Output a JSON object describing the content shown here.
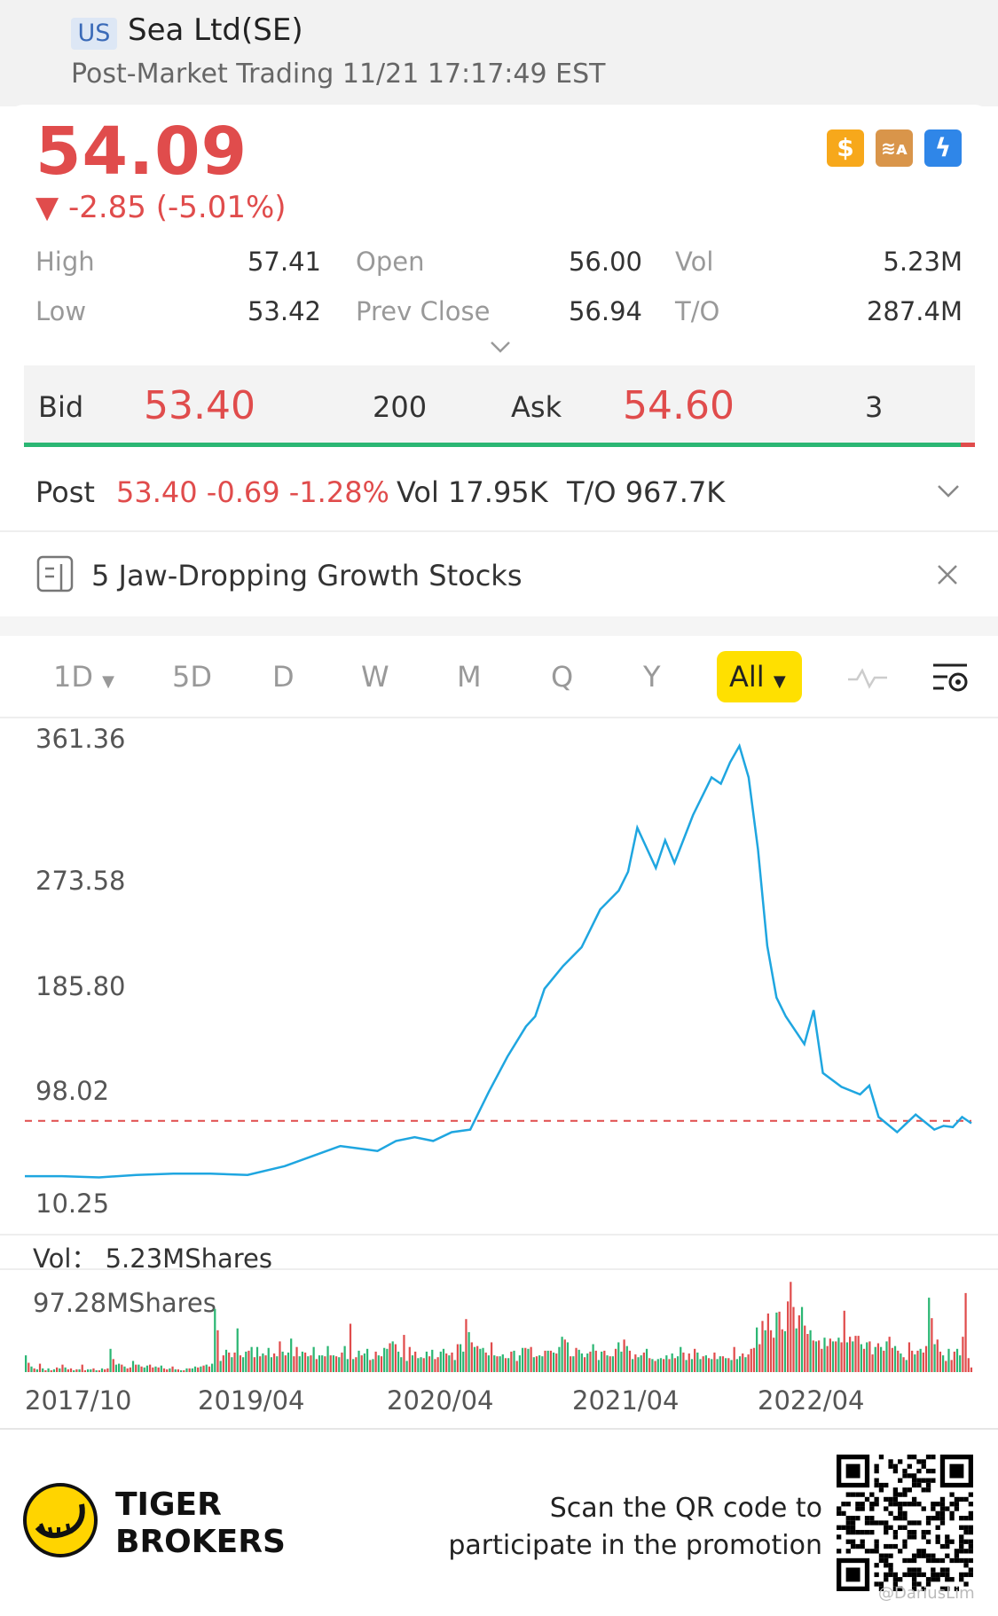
{
  "header": {
    "market": "US",
    "name": "Sea Ltd(SE)",
    "status": "Post-Market Trading 11/21 17:17:49 EST"
  },
  "quote": {
    "price": "54.09",
    "change": "-2.85 (-5.01%)",
    "down_color": "#e04c4c",
    "up_color": "#2bb673"
  },
  "icons": [
    "dollar-icon",
    "stack-a-icon",
    "lightning-icon"
  ],
  "stats": {
    "high_label": "High",
    "high": "57.41",
    "low_label": "Low",
    "low": "53.42",
    "open_label": "Open",
    "open": "56.00",
    "prev_close_label": "Prev Close",
    "prev_close": "56.94",
    "vol_label": "Vol",
    "vol": "5.23M",
    "to_label": "T/O",
    "to": "287.4M"
  },
  "bidask": {
    "bid_label": "Bid",
    "bid": "53.40",
    "bid_size": "200",
    "ask_label": "Ask",
    "ask": "54.60",
    "ask_size": "3"
  },
  "post": {
    "label": "Post",
    "quote": "53.40 -0.69 -1.28%",
    "vol": "Vol 17.95K",
    "to": "T/O 967.7K"
  },
  "news": {
    "title": "5 Jaw-Dropping Growth Stocks"
  },
  "tabs": {
    "d1": "1D",
    "d5": "5D",
    "day": "D",
    "week": "W",
    "month": "M",
    "quarter": "Q",
    "year": "Y",
    "all": "All",
    "active": "All",
    "active_color": "#ffe000"
  },
  "chart_data": [
    {
      "type": "line",
      "line_color": "#1fa6e0",
      "ref_color": "#e04c4c",
      "y_ticks": [
        "361.36",
        "273.58",
        "185.80",
        "98.02",
        "10.25"
      ],
      "ylim": [
        10.25,
        361.36
      ],
      "reference_line": 56.94,
      "x_ticks": [
        "2017/10",
        "2019/04",
        "2020/04",
        "2021/04",
        "2022/04"
      ],
      "x": [
        2017.8,
        2018.0,
        2018.2,
        2018.4,
        2018.6,
        2018.8,
        2019.0,
        2019.2,
        2019.35,
        2019.5,
        2019.6,
        2019.7,
        2019.8,
        2019.9,
        2020.0,
        2020.1,
        2020.2,
        2020.3,
        2020.4,
        2020.5,
        2020.55,
        2020.6,
        2020.7,
        2020.8,
        2020.9,
        2021.0,
        2021.05,
        2021.1,
        2021.2,
        2021.25,
        2021.3,
        2021.4,
        2021.5,
        2021.55,
        2021.6,
        2021.65,
        2021.7,
        2021.75,
        2021.8,
        2021.85,
        2021.9,
        2022.0,
        2022.05,
        2022.1,
        2022.2,
        2022.3,
        2022.35,
        2022.4,
        2022.5,
        2022.6,
        2022.7,
        2022.75,
        2022.8,
        2022.85,
        2022.9
      ],
      "y": [
        13,
        13,
        12,
        14,
        15,
        15,
        14,
        21,
        29,
        37,
        35,
        33,
        41,
        44,
        41,
        48,
        50,
        80,
        108,
        132,
        140,
        162,
        180,
        195,
        225,
        240,
        255,
        290,
        258,
        280,
        262,
        300,
        330,
        325,
        342,
        355,
        330,
        273,
        196,
        155,
        140,
        118,
        145,
        95,
        84,
        78,
        85,
        60,
        48,
        62,
        50,
        53,
        52,
        60,
        55
      ]
    },
    {
      "type": "bar",
      "series_name": "Vol",
      "current": "5.23MShares",
      "max_label": "97.28MShares",
      "ylim": [
        0,
        97.28
      ],
      "colors": {
        "up": "#2bb673",
        "down": "#e04c4c"
      },
      "values": [
        18,
        10,
        6,
        4,
        3,
        9,
        4,
        2,
        4,
        2,
        3,
        5,
        4,
        8,
        5,
        3,
        4,
        2,
        3,
        3,
        8,
        2,
        3,
        3,
        4,
        2,
        2,
        4,
        3,
        4,
        25,
        14,
        8,
        9,
        8,
        6,
        4,
        5,
        12,
        8,
        8,
        6,
        5,
        7,
        8,
        5,
        6,
        5,
        7,
        4,
        3,
        4,
        6,
        3,
        3,
        2,
        2,
        4,
        4,
        4,
        6,
        5,
        6,
        7,
        8,
        6,
        9,
        68,
        45,
        12,
        18,
        24,
        21,
        16,
        21,
        47,
        18,
        16,
        22,
        23,
        27,
        16,
        27,
        17,
        20,
        18,
        26,
        16,
        20,
        17,
        33,
        22,
        18,
        21,
        36,
        17,
        27,
        17,
        22,
        21,
        17,
        18,
        27,
        14,
        18,
        18,
        17,
        28,
        18,
        18,
        17,
        16,
        21,
        28,
        14,
        52,
        14,
        16,
        23,
        18,
        20,
        25,
        13,
        14,
        22,
        18,
        17,
        26,
        25,
        31,
        33,
        30,
        22,
        16,
        40,
        12,
        27,
        18,
        22,
        15,
        16,
        15,
        22,
        17,
        24,
        14,
        16,
        22,
        25,
        20,
        18,
        21,
        13,
        30,
        30,
        22,
        57,
        43,
        32,
        27,
        28,
        25,
        26,
        21,
        18,
        32,
        18,
        17,
        17,
        19,
        15,
        15,
        22,
        23,
        12,
        18,
        26,
        26,
        25,
        27,
        16,
        17,
        18,
        17,
        23,
        23,
        23,
        21,
        20,
        27,
        38,
        35,
        32,
        17,
        17,
        26,
        24,
        20,
        16,
        20,
        22,
        30,
        23,
        13,
        22,
        23,
        18,
        17,
        17,
        25,
        32,
        22,
        35,
        28,
        23,
        14,
        19,
        16,
        18,
        21,
        25,
        15,
        14,
        12,
        14,
        15,
        14,
        18,
        14,
        20,
        15,
        17,
        27,
        21,
        13,
        20,
        14,
        25,
        21,
        14,
        17,
        18,
        15,
        14,
        21,
        14,
        17,
        17,
        15,
        15,
        13,
        27,
        14,
        17,
        20,
        16,
        19,
        25,
        26,
        48,
        30,
        55,
        45,
        63,
        45,
        37,
        64,
        65,
        46,
        44,
        76,
        97,
        70,
        47,
        61,
        70,
        50,
        41,
        45,
        34,
        33,
        34,
        25,
        37,
        28,
        36,
        33,
        33,
        37,
        32,
        66,
        32,
        38,
        33,
        39,
        39,
        30,
        25,
        32,
        33,
        19,
        27,
        31,
        27,
        23,
        33,
        38,
        26,
        28,
        23,
        20,
        16,
        13,
        32,
        23,
        19,
        23,
        25,
        21,
        28,
        80,
        58,
        30,
        35,
        22,
        18,
        12,
        25,
        13,
        22,
        25,
        18,
        38,
        85,
        15,
        5
      ],
      "up": [
        1,
        0,
        1,
        0,
        1,
        0,
        1,
        0,
        1,
        0,
        1,
        0,
        1,
        0,
        1,
        0,
        0,
        1,
        0,
        1,
        0,
        0,
        1,
        1,
        0,
        1,
        0,
        1,
        0,
        0,
        1,
        0,
        1,
        1,
        0,
        1,
        0,
        0,
        1,
        0,
        1,
        0,
        1,
        1,
        0,
        0,
        1,
        0,
        1,
        0,
        0,
        1,
        0,
        1,
        0,
        1,
        0,
        1,
        0,
        1,
        1,
        0,
        1,
        0,
        1,
        0,
        1,
        1,
        0,
        1,
        0,
        1,
        0,
        1,
        0,
        1,
        0,
        1,
        1,
        0,
        1,
        0,
        1,
        0,
        1,
        0,
        1,
        1,
        0,
        1,
        0,
        1,
        0,
        1,
        1,
        0,
        0,
        1,
        1,
        0,
        1,
        0,
        1,
        0,
        1,
        1,
        0,
        1,
        0,
        1,
        0,
        1,
        0,
        1,
        1,
        0,
        1,
        0,
        1,
        0,
        1,
        1,
        0,
        1,
        0,
        1,
        0,
        1,
        1,
        0,
        1,
        0,
        1,
        1,
        0,
        1,
        0,
        1,
        0,
        1,
        1,
        0,
        1,
        0,
        1,
        0,
        0,
        1,
        1,
        0,
        1,
        0,
        1,
        0,
        1,
        1,
        0,
        1,
        0,
        1,
        0,
        1,
        1,
        0,
        1,
        0,
        1,
        0,
        1,
        1,
        0,
        1,
        0,
        1,
        0,
        1,
        1,
        0,
        1,
        0,
        1,
        0,
        1,
        1,
        0,
        1,
        0,
        1,
        0,
        1,
        1,
        0,
        1,
        0,
        1,
        0,
        1,
        1,
        0,
        1,
        0,
        1,
        0,
        1,
        1,
        0,
        1,
        0,
        1,
        0,
        1,
        1,
        0,
        1,
        0,
        1,
        0,
        1,
        1,
        0,
        1,
        0,
        1,
        0,
        1,
        1,
        0,
        1,
        0,
        1,
        0,
        1,
        1,
        0,
        1,
        0,
        1,
        0,
        1,
        1,
        0,
        1,
        0,
        1,
        0,
        1,
        1,
        0,
        1,
        0,
        1,
        0,
        1,
        1,
        0,
        1,
        0,
        0,
        0,
        1,
        0,
        0,
        1,
        0,
        0,
        0,
        1,
        0,
        0,
        1,
        0,
        0,
        0,
        1,
        0,
        1,
        0,
        0,
        1,
        0,
        1,
        0,
        0,
        1,
        0,
        0,
        1,
        0,
        1,
        0,
        0,
        1,
        0,
        1,
        0,
        0,
        1,
        0,
        1,
        0,
        0,
        1,
        0,
        1,
        0,
        1,
        0,
        0,
        1,
        0,
        1,
        0,
        1,
        0,
        0,
        1,
        0,
        1,
        0,
        0,
        1,
        0,
        1,
        0,
        0,
        1,
        0,
        1,
        0,
        0,
        1,
        1
      ]
    }
  ],
  "footer": {
    "brand_line1": "TIGER",
    "brand_line2": "BROKERS",
    "promo_line1": "Scan the QR code to",
    "promo_line2": "participate in the promotion",
    "watermark": "@DariusLim"
  }
}
